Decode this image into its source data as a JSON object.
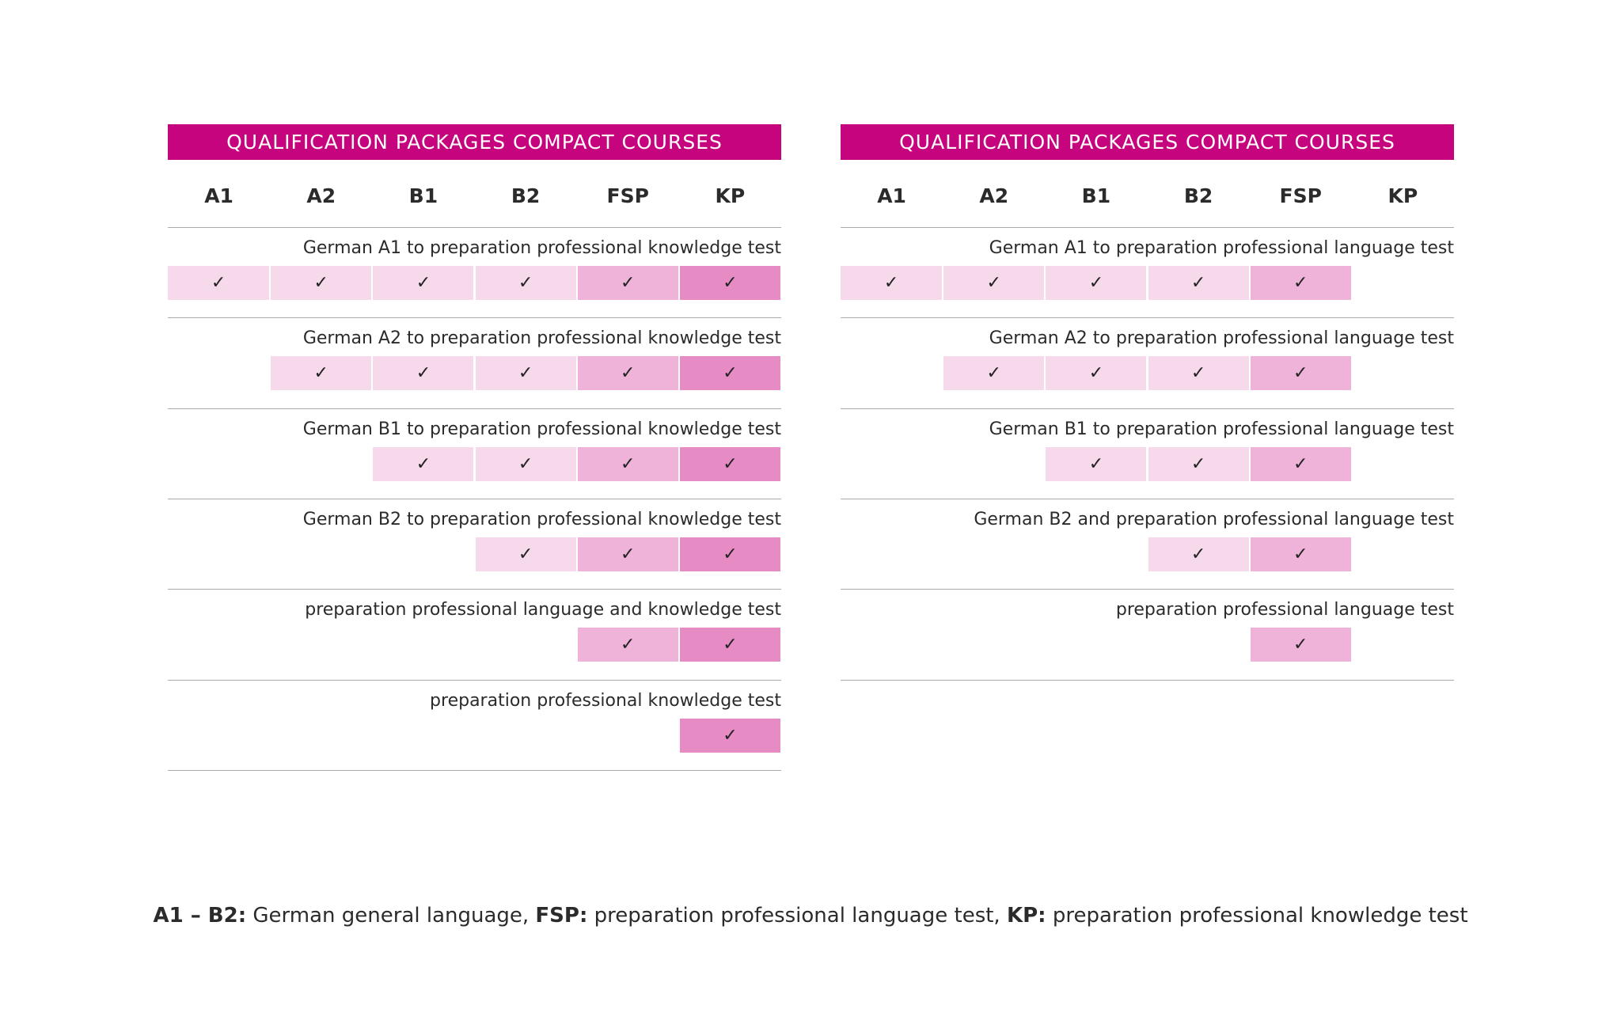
{
  "tables": [
    {
      "title": "QUALIFICATION PACKAGES COMPACT COURSES",
      "columns": [
        "A1",
        "A2",
        "B1",
        "B2",
        "FSP",
        "KP"
      ],
      "rows": [
        {
          "label": "German A1 to preparation professional knowledge test",
          "cells": [
            "✓",
            "✓",
            "✓",
            "✓",
            "✓",
            "✓"
          ]
        },
        {
          "label": "German A2 to preparation professional knowledge test",
          "cells": [
            null,
            "✓",
            "✓",
            "✓",
            "✓",
            "✓"
          ]
        },
        {
          "label": "German B1 to preparation professional knowledge test",
          "cells": [
            null,
            null,
            "✓",
            "✓",
            "✓",
            "✓"
          ]
        },
        {
          "label": "German B2 to preparation professional knowledge test",
          "cells": [
            null,
            null,
            null,
            "✓",
            "✓",
            "✓"
          ]
        },
        {
          "label": "preparation professional language and knowledge test",
          "cells": [
            null,
            null,
            null,
            null,
            "✓",
            "✓"
          ]
        },
        {
          "label": "preparation professional knowledge test",
          "cells": [
            null,
            null,
            null,
            null,
            null,
            "✓"
          ]
        }
      ]
    },
    {
      "title": "QUALIFICATION PACKAGES COMPACT COURSES",
      "columns": [
        "A1",
        "A2",
        "B1",
        "B2",
        "FSP",
        "KP"
      ],
      "rows": [
        {
          "label": "German A1 to preparation professional language test",
          "cells": [
            "✓",
            "✓",
            "✓",
            "✓",
            "✓",
            null
          ]
        },
        {
          "label": "German A2 to preparation professional language test",
          "cells": [
            null,
            "✓",
            "✓",
            "✓",
            "✓",
            null
          ]
        },
        {
          "label": "German B1 to preparation professional language test",
          "cells": [
            null,
            null,
            "✓",
            "✓",
            "✓",
            null
          ]
        },
        {
          "label": "German B2 and preparation professional language test",
          "cells": [
            null,
            null,
            null,
            "✓",
            "✓",
            null
          ]
        },
        {
          "label": "preparation professional language test",
          "cells": [
            null,
            null,
            null,
            null,
            "✓",
            null
          ]
        }
      ]
    }
  ],
  "footer": [
    {
      "term": "A1 – B2:",
      "desc": "German general language,"
    },
    {
      "term": "FSP:",
      "desc": "preparation professional language test,"
    },
    {
      "term": "KP:",
      "desc": "preparation professional knowledge test"
    }
  ]
}
